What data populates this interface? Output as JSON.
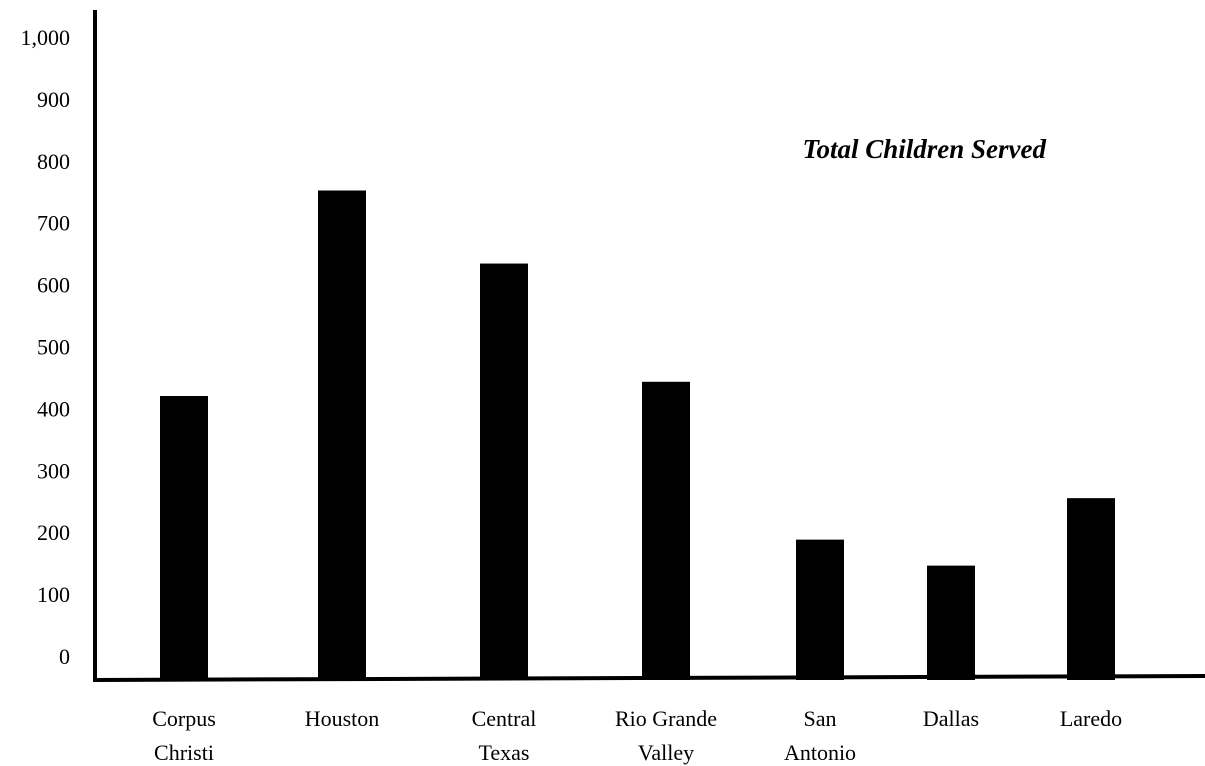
{
  "chart_data": {
    "type": "bar",
    "title": "Total Children Served",
    "xlabel": "",
    "ylabel": "",
    "ylim": [
      0,
      1000
    ],
    "yticks": [
      "0",
      "100",
      "200",
      "300",
      "400",
      "500",
      "600",
      "700",
      "800",
      "900",
      "1,000"
    ],
    "categories": [
      [
        "Corpus",
        "Christi"
      ],
      [
        "Houston"
      ],
      [
        "Central",
        "Texas"
      ],
      [
        "Rio Grande",
        "Valley"
      ],
      [
        "San",
        "Antonio"
      ],
      [
        "Dallas"
      ],
      [
        "Laredo"
      ]
    ],
    "values": [
      420,
      752,
      634,
      443,
      188,
      146,
      255
    ],
    "grid": false,
    "bar_color": "#000000"
  }
}
